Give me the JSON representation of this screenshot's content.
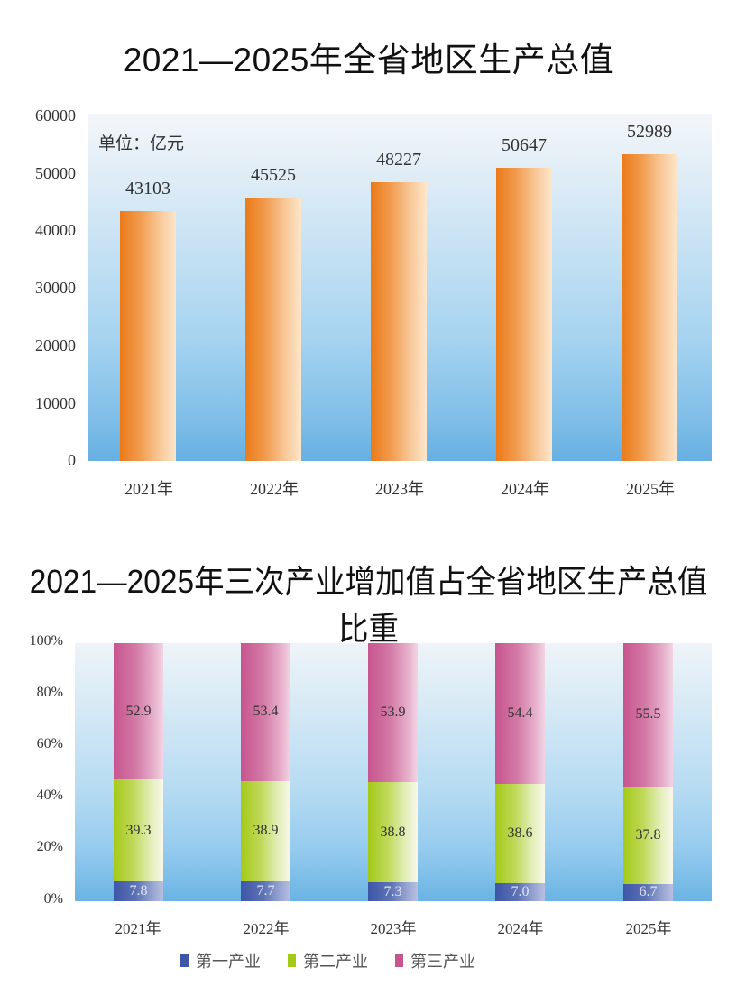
{
  "chart_data": [
    {
      "type": "bar",
      "title": "2021—2025年全省地区生产总值",
      "unit_note": "单位：亿元",
      "xlabel": "",
      "ylabel": "",
      "ylim": [
        0,
        60000
      ],
      "yticks": [
        "60000",
        "50000",
        "40000",
        "30000",
        "20000",
        "10000",
        "0"
      ],
      "categories": [
        "2021年",
        "2022年",
        "2023年",
        "2024年",
        "2025年"
      ],
      "values": [
        43103,
        45525,
        48227,
        50647,
        52989
      ],
      "value_labels": [
        "43103",
        "45525",
        "48227",
        "50647",
        "52989"
      ],
      "bar_color": "#ea7a18",
      "grid": false,
      "legend": null
    },
    {
      "type": "bar",
      "stacked": true,
      "title": "2021—2025年三次产业增加值占全省地区生产总值比重",
      "xlabel": "",
      "ylabel": "",
      "ylim": [
        0,
        100
      ],
      "yticks": [
        "100%",
        "80%",
        "60%",
        "40%",
        "20%",
        "0%"
      ],
      "categories": [
        "2021年",
        "2022年",
        "2023年",
        "2024年",
        "2025年"
      ],
      "series": [
        {
          "name": "第一产业",
          "color": "#3d56a6",
          "values": [
            7.8,
            7.7,
            7.3,
            7.0,
            6.7
          ],
          "labels": [
            "7.8",
            "7.7",
            "7.3",
            "7.0",
            "6.7"
          ]
        },
        {
          "name": "第二产业",
          "color": "#a4c917",
          "values": [
            39.3,
            38.9,
            38.8,
            38.6,
            37.8
          ],
          "labels": [
            "39.3",
            "38.9",
            "38.8",
            "38.6",
            "37.8"
          ]
        },
        {
          "name": "第三产业",
          "color": "#c7548f",
          "values": [
            52.9,
            53.4,
            53.9,
            54.4,
            55.5
          ],
          "labels": [
            "52.9",
            "53.4",
            "53.9",
            "54.4",
            "55.5"
          ]
        }
      ],
      "legend_position": "bottom",
      "grid": false
    }
  ]
}
